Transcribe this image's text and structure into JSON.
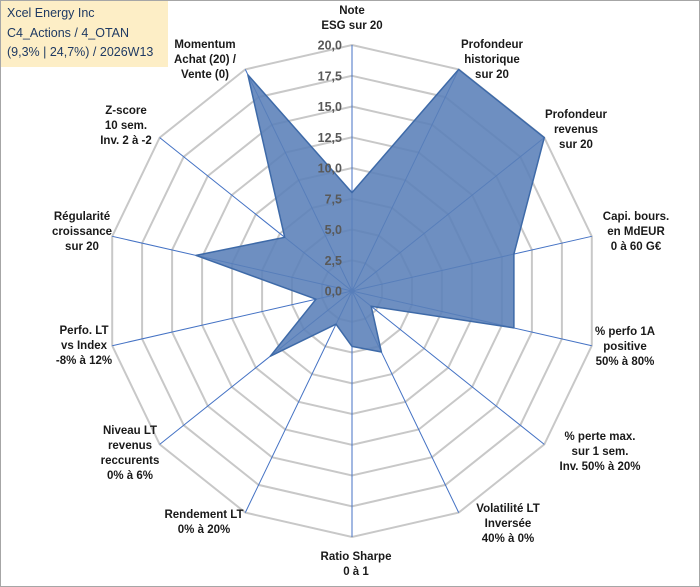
{
  "header": {
    "line1": "Xcel Energy Inc",
    "line2": "C4_Actions / 4_OTAN",
    "line3": "(9,3% | 24,7%) / 2026W13"
  },
  "colors": {
    "grid": "#c8c8c8",
    "spoke": "#4472c4",
    "fill": "#5a80b8",
    "stroke": "#3e6aa8",
    "title_bg": "#fdeec6"
  },
  "chart_data": {
    "type": "radar",
    "r_min": 0,
    "r_max": 20,
    "ticks": [
      "0,0",
      "2,5",
      "5,0",
      "7,5",
      "10,0",
      "12,5",
      "15,0",
      "17,5",
      "20,0"
    ],
    "categories": [
      [
        "Note",
        "ESG sur 20"
      ],
      [
        "Profondeur",
        "historique",
        "sur 20"
      ],
      [
        "Profondeur",
        "revenus",
        "sur 20"
      ],
      [
        "Capi. bours.",
        "en MdEUR",
        "0 à 60 G€"
      ],
      [
        "% perfo 1A",
        "positive",
        "50% à 80%"
      ],
      [
        "% perte max.",
        "sur 1 sem.",
        "Inv. 50% à 20%"
      ],
      [
        "Volatilité LT",
        "Inversée",
        "40% à 0%"
      ],
      [
        "Ratio Sharpe",
        "0 à 1"
      ],
      [
        "Rendement LT",
        "0% à 20%"
      ],
      [
        "Niveau LT",
        "revenus",
        "reccurents",
        "0% à 6%"
      ],
      [
        "Perfo. LT",
        "vs Index",
        "-8% à 12%"
      ],
      [
        "Régularité",
        "croissance",
        "sur 20"
      ],
      [
        "Z-score",
        "10 sem.",
        "Inv. 2 à -2"
      ],
      [
        "Momentum",
        "Achat (20) /",
        "Vente (0)"
      ]
    ],
    "series": [
      {
        "name": "Xcel Energy Inc",
        "values": [
          8,
          20,
          20,
          13.5,
          13.5,
          2,
          5.5,
          4.5,
          3,
          8.5,
          3,
          13,
          7,
          19.5
        ]
      }
    ]
  }
}
